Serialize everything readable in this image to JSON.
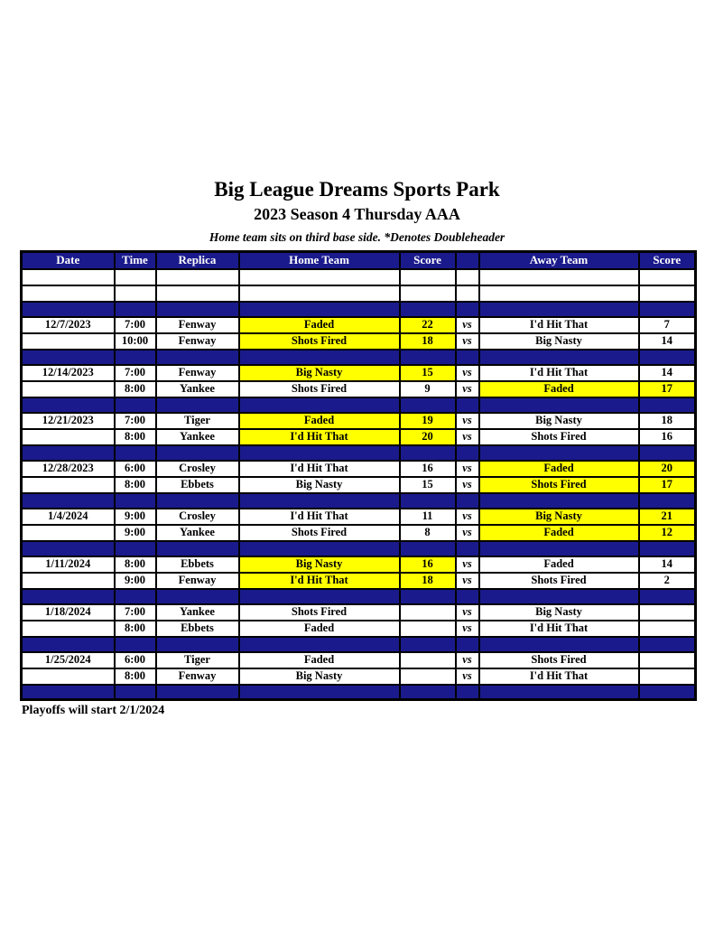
{
  "header": {
    "title": "Big League Dreams Sports Park",
    "subtitle": "2023 Season 4 Thursday AAA",
    "note": "Home team sits on third base side.  *Denotes Doubleheader"
  },
  "schedule": {
    "headers": [
      "Date",
      "Time",
      "Replica",
      "Home Team",
      "Score",
      "",
      "Away Team",
      "Score"
    ],
    "vs_label": "vs",
    "blocks": [
      {
        "date": "12/7/2023",
        "games": [
          {
            "time": "7:00",
            "replica": "Fenway",
            "home_team": "Faded",
            "home_score": "22",
            "away_team": "I'd Hit That",
            "away_score": "7",
            "winner": "home"
          },
          {
            "time": "10:00",
            "replica": "Fenway",
            "home_team": "Shots Fired",
            "home_score": "18",
            "away_team": "Big Nasty",
            "away_score": "14",
            "winner": "home"
          }
        ]
      },
      {
        "date": "12/14/2023",
        "games": [
          {
            "time": "7:00",
            "replica": "Fenway",
            "home_team": "Big Nasty",
            "home_score": "15",
            "away_team": "I'd Hit That",
            "away_score": "14",
            "winner": "home"
          },
          {
            "time": "8:00",
            "replica": "Yankee",
            "home_team": "Shots Fired",
            "home_score": "9",
            "away_team": "Faded",
            "away_score": "17",
            "winner": "away"
          }
        ]
      },
      {
        "date": "12/21/2023",
        "games": [
          {
            "time": "7:00",
            "replica": "Tiger",
            "home_team": "Faded",
            "home_score": "19",
            "away_team": "Big Nasty",
            "away_score": "18",
            "winner": "home"
          },
          {
            "time": "8:00",
            "replica": "Yankee",
            "home_team": "I'd Hit That",
            "home_score": "20",
            "away_team": "Shots Fired",
            "away_score": "16",
            "winner": "home"
          }
        ]
      },
      {
        "date": "12/28/2023",
        "games": [
          {
            "time": "6:00",
            "replica": "Crosley",
            "home_team": "I'd Hit That",
            "home_score": "16",
            "away_team": "Faded",
            "away_score": "20",
            "winner": "away"
          },
          {
            "time": "8:00",
            "replica": "Ebbets",
            "home_team": "Big Nasty",
            "home_score": "15",
            "away_team": "Shots Fired",
            "away_score": "17",
            "winner": "away"
          }
        ]
      },
      {
        "date": "1/4/2024",
        "games": [
          {
            "time": "9:00",
            "replica": "Crosley",
            "home_team": "I'd Hit That",
            "home_score": "11",
            "away_team": "Big Nasty",
            "away_score": "21",
            "winner": "away"
          },
          {
            "time": "9:00",
            "replica": "Yankee",
            "home_team": "Shots Fired",
            "home_score": "8",
            "away_team": "Faded",
            "away_score": "12",
            "winner": "away"
          }
        ]
      },
      {
        "date": "1/11/2024",
        "games": [
          {
            "time": "8:00",
            "replica": "Ebbets",
            "home_team": "Big Nasty",
            "home_score": "16",
            "away_team": "Faded",
            "away_score": "14",
            "winner": "home"
          },
          {
            "time": "9:00",
            "replica": "Fenway",
            "home_team": "I'd Hit That",
            "home_score": "18",
            "away_team": "Shots Fired",
            "away_score": "2",
            "winner": "home"
          }
        ]
      },
      {
        "date": "1/18/2024",
        "games": [
          {
            "time": "7:00",
            "replica": "Yankee",
            "home_team": "Shots Fired",
            "home_score": "",
            "away_team": "Big Nasty",
            "away_score": "",
            "winner": ""
          },
          {
            "time": "8:00",
            "replica": "Ebbets",
            "home_team": "Faded",
            "home_score": "",
            "away_team": "I'd Hit That",
            "away_score": "",
            "winner": ""
          }
        ]
      },
      {
        "date": "1/25/2024",
        "games": [
          {
            "time": "6:00",
            "replica": "Tiger",
            "home_team": "Faded",
            "home_score": "",
            "away_team": "Shots Fired",
            "away_score": "",
            "winner": ""
          },
          {
            "time": "8:00",
            "replica": "Fenway",
            "home_team": "Big Nasty",
            "home_score": "",
            "away_team": "I'd Hit That",
            "away_score": "",
            "winner": ""
          }
        ]
      }
    ]
  },
  "footer": {
    "note": "Playoffs will start 2/1/2024"
  },
  "colors": {
    "header_navy": "#1a1a8c",
    "winner_highlight": "#ffff00",
    "header_text": "#ffffff",
    "border": "#000000"
  }
}
